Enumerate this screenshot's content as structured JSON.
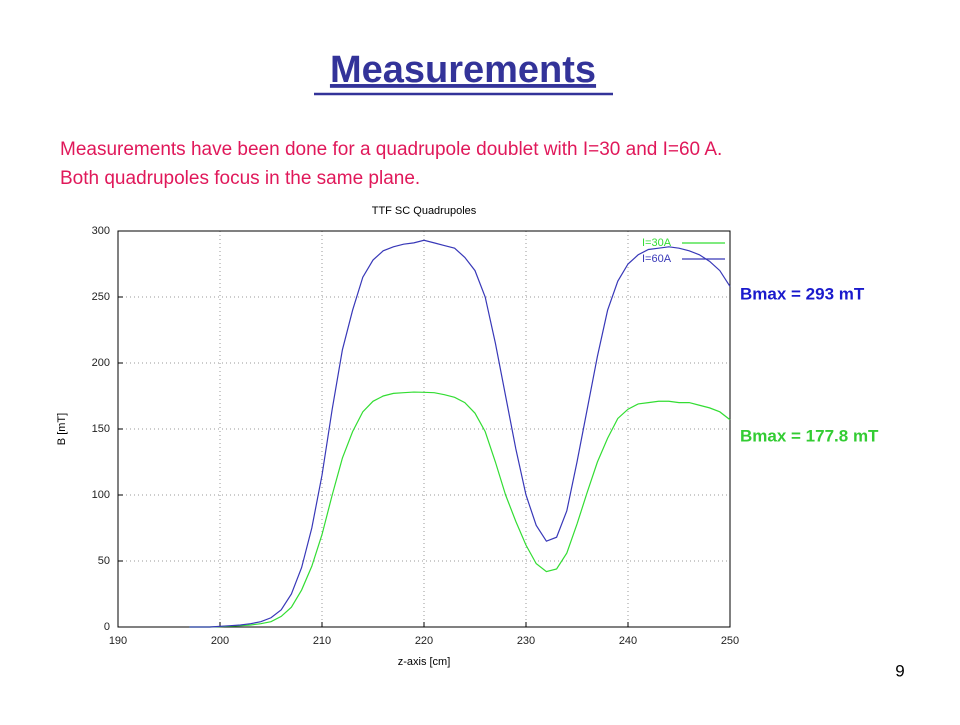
{
  "slide": {
    "title": "Measurements",
    "text": [
      "Measurements have been done for a quadrupole doublet with I=30 and I=60 A.",
      "Both quadrupoles focus in the same plane."
    ],
    "annotations": [
      {
        "text": "Bmax = 293 mT",
        "color": "#1a1acc"
      },
      {
        "text": "Bmax = 177.8 mT",
        "color": "#33cc33"
      }
    ],
    "page_number": 9
  },
  "chart_data": {
    "type": "line",
    "title": "TTF SC Quadrupoles",
    "xlabel": "z-axis [cm]",
    "ylabel": "B [mT]",
    "x": [
      197,
      198,
      199,
      200,
      201,
      202,
      203,
      204,
      205,
      206,
      207,
      208,
      209,
      210,
      211,
      212,
      213,
      214,
      215,
      216,
      217,
      218,
      219,
      220,
      221,
      222,
      223,
      224,
      225,
      226,
      227,
      228,
      229,
      230,
      231,
      232,
      233,
      234,
      235,
      236,
      237,
      238,
      239,
      240,
      241,
      242,
      243,
      244,
      245,
      246,
      247,
      248,
      249,
      250
    ],
    "series": [
      {
        "name": "I=30A",
        "color": "#33dd33",
        "values": [
          0,
          0,
          0,
          0.3,
          0.6,
          1,
          1.5,
          2.5,
          4,
          8,
          15,
          28,
          46,
          70,
          100,
          128,
          148,
          163,
          171,
          175,
          177,
          177.5,
          178,
          177.8,
          177.5,
          176,
          174,
          170,
          162,
          148,
          125,
          100,
          80,
          62,
          48,
          42,
          44,
          56,
          78,
          102,
          125,
          143,
          158,
          165,
          169,
          170,
          171,
          171,
          170,
          170,
          168,
          166,
          163,
          157
        ]
      },
      {
        "name": "I=60A",
        "color": "#3838b8",
        "values": [
          0,
          0,
          0,
          0.5,
          1,
          1.5,
          2.5,
          4,
          7,
          13,
          25,
          45,
          75,
          115,
          165,
          210,
          240,
          265,
          278,
          285,
          288,
          290,
          291,
          293,
          291,
          289,
          287,
          280,
          270,
          250,
          215,
          175,
          135,
          100,
          77,
          65,
          68,
          88,
          125,
          165,
          205,
          240,
          262,
          275,
          282,
          286,
          287,
          288,
          287,
          285,
          282,
          277,
          270,
          258
        ]
      }
    ],
    "xlim": [
      190,
      250
    ],
    "xticks": [
      190,
      200,
      210,
      220,
      230,
      240,
      250
    ],
    "ylim": [
      0,
      300
    ],
    "yticks": [
      0,
      50,
      100,
      150,
      200,
      250,
      300
    ],
    "grid": true,
    "legend": "upper right"
  }
}
